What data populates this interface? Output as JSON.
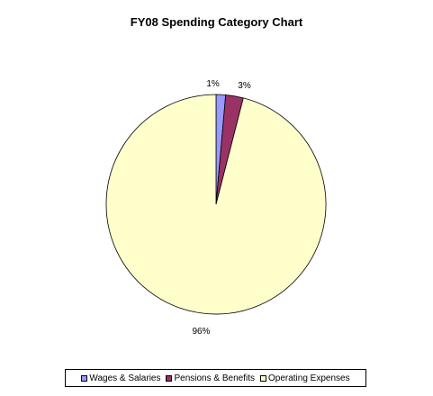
{
  "chart_data": {
    "type": "pie",
    "title": "FY08 Spending Category Chart",
    "categories": [
      "Wages & Salaries",
      "Pensions & Benefits",
      "Operating Expenses"
    ],
    "values": [
      1.4,
      2.6,
      96.0
    ],
    "data_labels": [
      "1%",
      "3%",
      "96%"
    ],
    "colors": [
      "#9999FF",
      "#993366",
      "#FFFFCC"
    ],
    "legend_position": "bottom"
  }
}
